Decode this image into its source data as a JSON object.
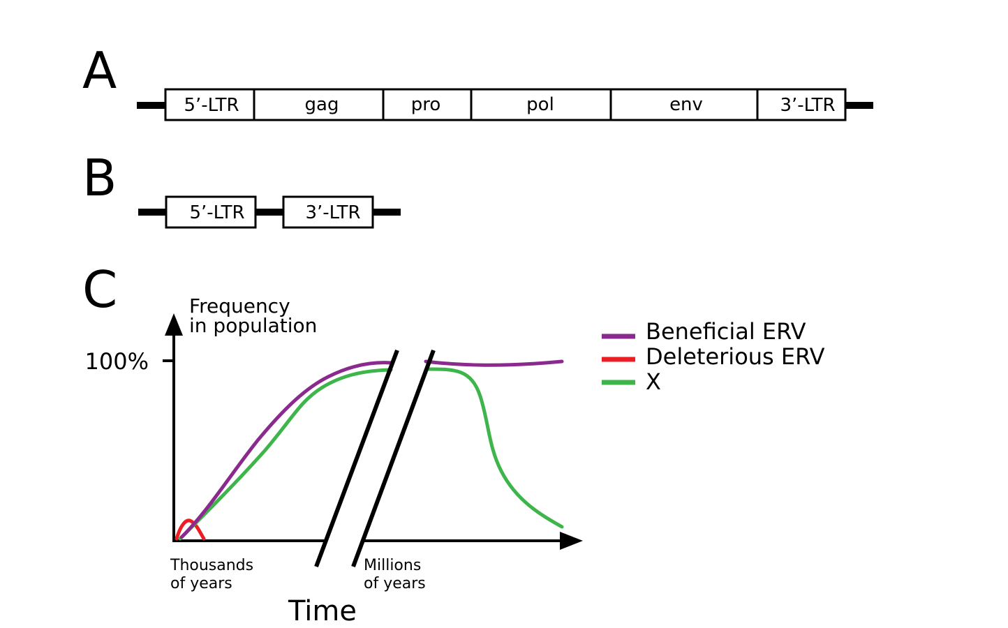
{
  "panels": {
    "a": {
      "letter": "A",
      "segments": [
        "5’-LTR",
        "gag",
        "pro",
        "pol",
        "env",
        "3’-LTR"
      ]
    },
    "b": {
      "letter": "B",
      "segments": [
        "5’-LTR",
        "3’-LTR"
      ]
    },
    "c": {
      "letter": "C",
      "y_axis_label_line1": "Frequency",
      "y_axis_label_line2": "in population",
      "y_tick": "100%",
      "x_left_line1": "Thousands",
      "x_left_line2": "of years",
      "x_right_line1": "Millions",
      "x_right_line2": "of years",
      "x_axis_label": "Time",
      "legend": [
        {
          "label": "Beneficial ERV",
          "color": "#8B2A8E"
        },
        {
          "label": "Deleterious ERV",
          "color": "#EE1C24"
        },
        {
          "label": "X",
          "color": "#3DB54A"
        }
      ]
    }
  }
}
